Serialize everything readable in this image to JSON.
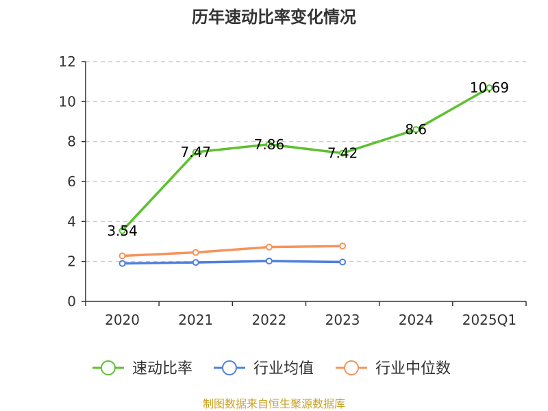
{
  "chart_data": {
    "type": "line",
    "title": "历年速动比率变化情况",
    "categories": [
      "2020",
      "2021",
      "2022",
      "2023",
      "2024",
      "2025Q1"
    ],
    "ylim": [
      0,
      12
    ],
    "yticks": [
      0,
      2,
      4,
      6,
      8,
      10,
      12
    ],
    "grid": true,
    "legend_position": "bottom",
    "series": [
      {
        "name": "速动比率",
        "color": "#5cc12f",
        "show_labels": true,
        "values": [
          3.54,
          7.47,
          7.86,
          7.42,
          8.6,
          10.69
        ]
      },
      {
        "name": "行业均值",
        "color": "#4f7fdc",
        "show_labels": false,
        "values": [
          1.9,
          1.95,
          2.02,
          1.97,
          null,
          null
        ]
      },
      {
        "name": "行业中位数",
        "color": "#f7935a",
        "show_labels": false,
        "values": [
          2.28,
          2.45,
          2.72,
          2.77,
          null,
          null
        ]
      }
    ],
    "source": "制图数据来自恒生聚源数据库"
  }
}
